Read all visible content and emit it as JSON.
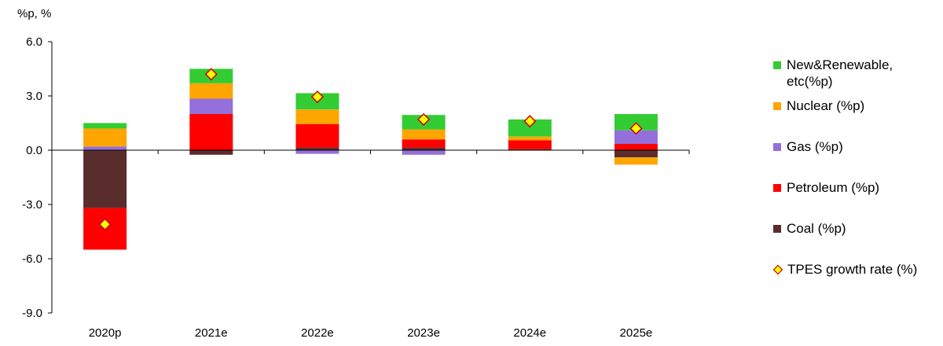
{
  "chart_data": {
    "type": "bar",
    "stacked": true,
    "y_unit_label": "%p, %",
    "categories": [
      "2020p",
      "2021e",
      "2022e",
      "2023e",
      "2024e",
      "2025e"
    ],
    "ylim": [
      -9.0,
      6.0
    ],
    "yticks": [
      "6.0",
      "3.0",
      "0.0",
      "-3.0",
      "-6.0",
      "-9.0"
    ],
    "ytick_values": [
      6,
      3,
      0,
      -3,
      -6,
      -9
    ],
    "series": [
      {
        "name": "Coal (%p)",
        "color": "#5a2d2d",
        "values": [
          -3.2,
          -0.25,
          0.15,
          0.15,
          0.05,
          -0.4
        ]
      },
      {
        "name": "Petroleum (%p)",
        "color": "#ff0000",
        "values": [
          -2.3,
          2.0,
          1.3,
          0.45,
          0.5,
          0.35
        ]
      },
      {
        "name": "Gas (%p)",
        "color": "#9370db",
        "values": [
          0.2,
          0.85,
          -0.2,
          -0.25,
          0.0,
          0.75
        ]
      },
      {
        "name": "Nuclear (%p)",
        "color": "#ffa500",
        "values": [
          1.0,
          0.85,
          0.8,
          0.55,
          0.2,
          -0.4
        ]
      },
      {
        "name": "New&Renewable, etc(%p)",
        "color": "#33cc33",
        "values": [
          0.3,
          0.8,
          0.9,
          0.8,
          0.95,
          0.9
        ]
      }
    ],
    "line_series": {
      "name": "TPES growth rate (%)",
      "marker": "diamond",
      "fill": "#ffff00",
      "stroke": "#cc0000",
      "values": [
        -4.1,
        4.2,
        2.95,
        1.7,
        1.6,
        1.2
      ]
    },
    "legend": {
      "position": "right",
      "order": [
        "New&Renewable, etc(%p)",
        "Nuclear (%p)",
        "Gas (%p)",
        "Petroleum (%p)",
        "Coal (%p)",
        "TPES growth rate (%)"
      ]
    },
    "grid": false
  }
}
